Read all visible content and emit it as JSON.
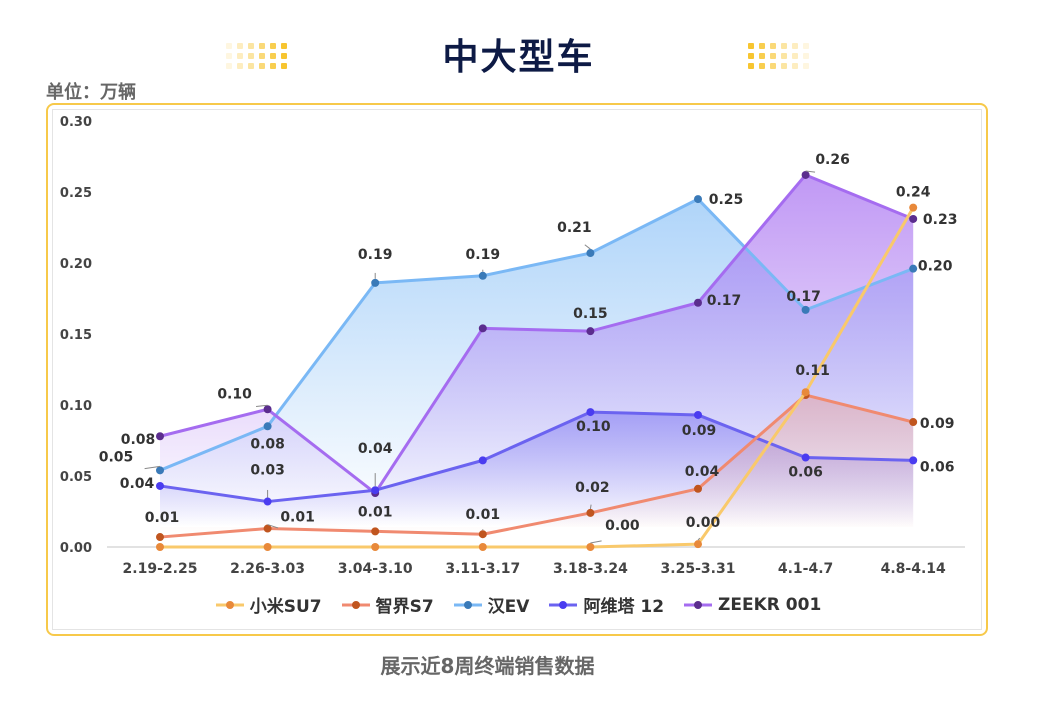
{
  "header": {
    "title": "中大型车",
    "unit": "单位：万辆"
  },
  "footer": {
    "note": "展示近8周终端销售数据"
  },
  "chart_data": {
    "type": "line",
    "title": "中大型车",
    "ylabel": "单位：万辆",
    "ylim": [
      0,
      0.3
    ],
    "yticks": [
      "0.00",
      "0.05",
      "0.10",
      "0.15",
      "0.20",
      "0.25",
      "0.30"
    ],
    "grid": false,
    "legend_position": "bottom",
    "categories": [
      "2.19-2.25",
      "2.26-3.03",
      "3.04-3.10",
      "3.11-3.17",
      "3.18-3.24",
      "3.25-3.31",
      "4.1-4.7",
      "4.8-4.14"
    ],
    "series": [
      {
        "name": "小米SU7",
        "line_color": "#f9c96b",
        "marker_color": "#e8893a",
        "values": [
          0,
          0,
          0,
          0,
          0,
          0.002,
          0.109,
          0.239
        ],
        "labels": [
          null,
          null,
          null,
          null,
          "0.00",
          "0.00",
          "0.11",
          "0.24"
        ]
      },
      {
        "name": "智界S7",
        "line_color": "#f08a70",
        "marker_color": "#c0551f",
        "values": [
          0.007,
          0.013,
          0.011,
          0.009,
          0.024,
          0.041,
          0.107,
          0.088
        ],
        "labels": [
          "0.01",
          "0.01",
          "0.01",
          "0.01",
          "0.02",
          "0.04",
          null,
          "0.09"
        ]
      },
      {
        "name": "汉EV",
        "line_color": "#7ab8f5",
        "marker_color": "#3a7ab8",
        "values": [
          0.054,
          0.085,
          0.186,
          0.191,
          0.207,
          0.245,
          0.167,
          0.196
        ],
        "labels": [
          "0.05",
          "0.08",
          "0.19",
          "0.19",
          "0.21",
          "0.25",
          "0.17",
          "0.20"
        ]
      },
      {
        "name": "阿维塔 12",
        "line_color": "#6b63f0",
        "marker_color": "#4a3cf0",
        "values": [
          0.043,
          0.032,
          0.04,
          0.061,
          0.095,
          0.093,
          0.063,
          0.061
        ],
        "labels": [
          "0.04",
          "0.03",
          "0.04",
          null,
          "0.10",
          "0.09",
          "0.06",
          "0.06"
        ]
      },
      {
        "name": "ZEEKR 001",
        "line_color": "#a56cf0",
        "marker_color": "#5b2d8e",
        "values": [
          0.078,
          0.097,
          0.038,
          0.154,
          0.152,
          0.172,
          0.262,
          0.231
        ],
        "labels": [
          "0.08",
          "0.10",
          null,
          null,
          "0.15",
          "0.17",
          "0.26",
          "0.23"
        ]
      }
    ]
  }
}
